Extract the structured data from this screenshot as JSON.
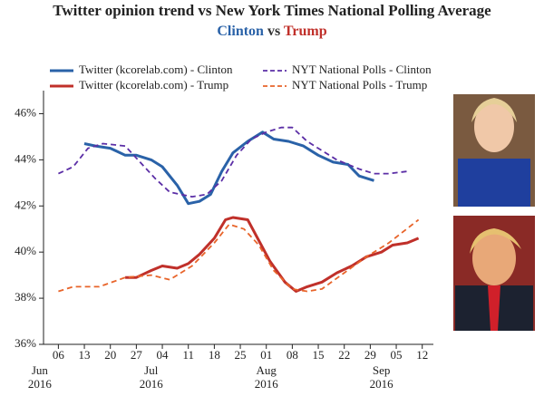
{
  "chart_data": {
    "type": "line",
    "title": "Twitter opinion trend vs New York Times National Polling Average",
    "subtitle": [
      {
        "text": "Clinton",
        "color": "#2a62a8"
      },
      {
        "text": "vs",
        "color": "#333333"
      },
      {
        "text": "Trump",
        "color": "#c0302a"
      }
    ],
    "xlim": [
      "2016-06-02",
      "2016-09-15"
    ],
    "xticks": [
      {
        "value": "2016-06-06",
        "label": "06"
      },
      {
        "value": "2016-06-13",
        "label": "13"
      },
      {
        "value": "2016-06-20",
        "label": "20"
      },
      {
        "value": "2016-06-27",
        "label": "27"
      },
      {
        "value": "2016-07-04",
        "label": "04"
      },
      {
        "value": "2016-07-11",
        "label": "11"
      },
      {
        "value": "2016-07-18",
        "label": "18"
      },
      {
        "value": "2016-07-25",
        "label": "25"
      },
      {
        "value": "2016-08-01",
        "label": "01"
      },
      {
        "value": "2016-08-08",
        "label": "08"
      },
      {
        "value": "2016-08-15",
        "label": "15"
      },
      {
        "value": "2016-08-22",
        "label": "22"
      },
      {
        "value": "2016-08-29",
        "label": "29"
      },
      {
        "value": "2016-09-05",
        "label": "05"
      },
      {
        "value": "2016-09-12",
        "label": "12"
      }
    ],
    "month_labels": [
      {
        "value": "2016-06-01",
        "month": "Jun",
        "year": "2016"
      },
      {
        "value": "2016-07-01",
        "month": "Jul",
        "year": "2016"
      },
      {
        "value": "2016-08-01",
        "month": "Aug",
        "year": "2016"
      },
      {
        "value": "2016-09-01",
        "month": "Sep",
        "year": "2016"
      }
    ],
    "ylim": [
      36,
      47
    ],
    "yticks": [
      {
        "value": 36,
        "label": "36%"
      },
      {
        "value": 38,
        "label": "38%"
      },
      {
        "value": 40,
        "label": "40%"
      },
      {
        "value": 42,
        "label": "42%"
      },
      {
        "value": 44,
        "label": "44%"
      },
      {
        "value": 46,
        "label": "46%"
      }
    ],
    "series": [
      {
        "name": "Twitter (kcorelab.com) - Clinton",
        "color": "#2a62a8",
        "dashed": false,
        "x": [
          "2016-06-13",
          "2016-06-16",
          "2016-06-20",
          "2016-06-24",
          "2016-06-27",
          "2016-07-01",
          "2016-07-04",
          "2016-07-08",
          "2016-07-11",
          "2016-07-14",
          "2016-07-17",
          "2016-07-20",
          "2016-07-23",
          "2016-07-27",
          "2016-07-31",
          "2016-08-03",
          "2016-08-07",
          "2016-08-11",
          "2016-08-15",
          "2016-08-19",
          "2016-08-23",
          "2016-08-26",
          "2016-08-30"
        ],
        "values": [
          44.7,
          44.6,
          44.5,
          44.2,
          44.2,
          44.0,
          43.7,
          42.9,
          42.1,
          42.2,
          42.5,
          43.5,
          44.3,
          44.8,
          45.2,
          44.9,
          44.8,
          44.6,
          44.2,
          43.9,
          43.8,
          43.3,
          43.1
        ]
      },
      {
        "name": "NYT National Polls - Clinton",
        "color": "#5b2ea6",
        "dashed": true,
        "x": [
          "2016-06-06",
          "2016-06-10",
          "2016-06-14",
          "2016-06-18",
          "2016-06-24",
          "2016-06-28",
          "2016-07-02",
          "2016-07-06",
          "2016-07-12",
          "2016-07-16",
          "2016-07-20",
          "2016-07-24",
          "2016-07-28",
          "2016-08-01",
          "2016-08-05",
          "2016-08-08",
          "2016-08-12",
          "2016-08-16",
          "2016-08-20",
          "2016-08-26",
          "2016-08-30",
          "2016-09-03",
          "2016-09-08"
        ],
        "values": [
          43.4,
          43.7,
          44.5,
          44.7,
          44.6,
          43.9,
          43.2,
          42.6,
          42.4,
          42.5,
          43.1,
          44.2,
          44.9,
          45.2,
          45.4,
          45.4,
          44.8,
          44.4,
          44.0,
          43.6,
          43.4,
          43.4,
          43.5
        ]
      },
      {
        "name": "Twitter (kcorelab.com) - Trump",
        "color": "#c0302a",
        "dashed": false,
        "x": [
          "2016-06-24",
          "2016-06-27",
          "2016-07-01",
          "2016-07-04",
          "2016-07-08",
          "2016-07-11",
          "2016-07-14",
          "2016-07-18",
          "2016-07-21",
          "2016-07-23",
          "2016-07-27",
          "2016-07-30",
          "2016-08-02",
          "2016-08-06",
          "2016-08-09",
          "2016-08-12",
          "2016-08-16",
          "2016-08-20",
          "2016-08-24",
          "2016-08-28",
          "2016-09-01",
          "2016-09-04",
          "2016-09-08",
          "2016-09-11"
        ],
        "values": [
          38.9,
          38.9,
          39.2,
          39.4,
          39.3,
          39.5,
          39.9,
          40.6,
          41.4,
          41.5,
          41.4,
          40.5,
          39.6,
          38.7,
          38.3,
          38.5,
          38.7,
          39.1,
          39.4,
          39.8,
          40.0,
          40.3,
          40.4,
          40.6
        ]
      },
      {
        "name": "NYT National Polls - Trump",
        "color": "#e8642a",
        "dashed": true,
        "x": [
          "2016-06-06",
          "2016-06-10",
          "2016-06-17",
          "2016-06-24",
          "2016-07-01",
          "2016-07-06",
          "2016-07-12",
          "2016-07-18",
          "2016-07-22",
          "2016-07-26",
          "2016-07-30",
          "2016-08-03",
          "2016-08-08",
          "2016-08-12",
          "2016-08-16",
          "2016-08-22",
          "2016-08-28",
          "2016-09-03",
          "2016-09-11"
        ],
        "values": [
          38.3,
          38.5,
          38.5,
          38.9,
          39.0,
          38.8,
          39.4,
          40.4,
          41.2,
          41.0,
          40.3,
          39.2,
          38.4,
          38.3,
          38.4,
          39.1,
          39.8,
          40.4,
          41.4
        ]
      }
    ]
  }
}
